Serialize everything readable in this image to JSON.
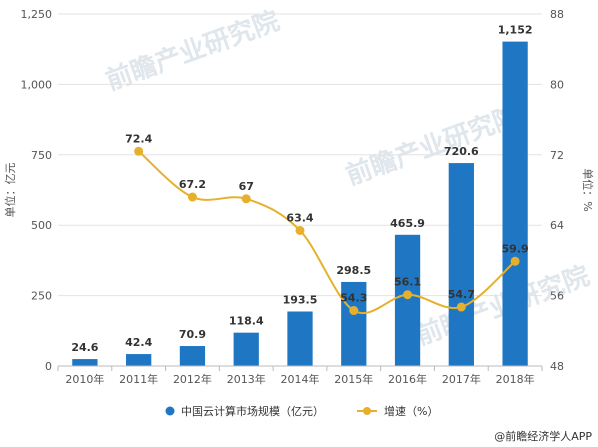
{
  "chart_data": {
    "type": "bar",
    "categories": [
      "2010年",
      "2011年",
      "2012年",
      "2013年",
      "2014年",
      "2015年",
      "2016年",
      "2017年",
      "2018年"
    ],
    "bar_labels": [
      "24.6",
      "42.4",
      "70.9",
      "118.4",
      "193.5",
      "298.5",
      "465.9",
      "720.6",
      "1,152"
    ],
    "series": [
      {
        "name": "中国云计算市场规模（亿元）",
        "type": "bar",
        "axis": "left",
        "values": [
          24.6,
          42.4,
          70.9,
          118.4,
          193.5,
          298.5,
          465.9,
          720.6,
          1152
        ],
        "color": "#1f77c4"
      },
      {
        "name": "增速（%）",
        "type": "line",
        "axis": "right",
        "values": [
          null,
          72.4,
          67.2,
          67,
          63.4,
          54.3,
          56.1,
          54.7,
          59.9
        ],
        "color": "#e6b02d"
      }
    ],
    "ylabel": "单位：亿元",
    "y2label": "单位：%",
    "ylim": [
      0,
      1250
    ],
    "y2lim": [
      48,
      88
    ],
    "yticks": [
      0,
      250,
      500,
      750,
      1000,
      1250
    ],
    "y2ticks": [
      48,
      56,
      64,
      72,
      80,
      88
    ],
    "grid": true,
    "legend_position": "bottom"
  },
  "watermark": "前瞻产业研究院",
  "source": "@前瞻经济学人APP"
}
